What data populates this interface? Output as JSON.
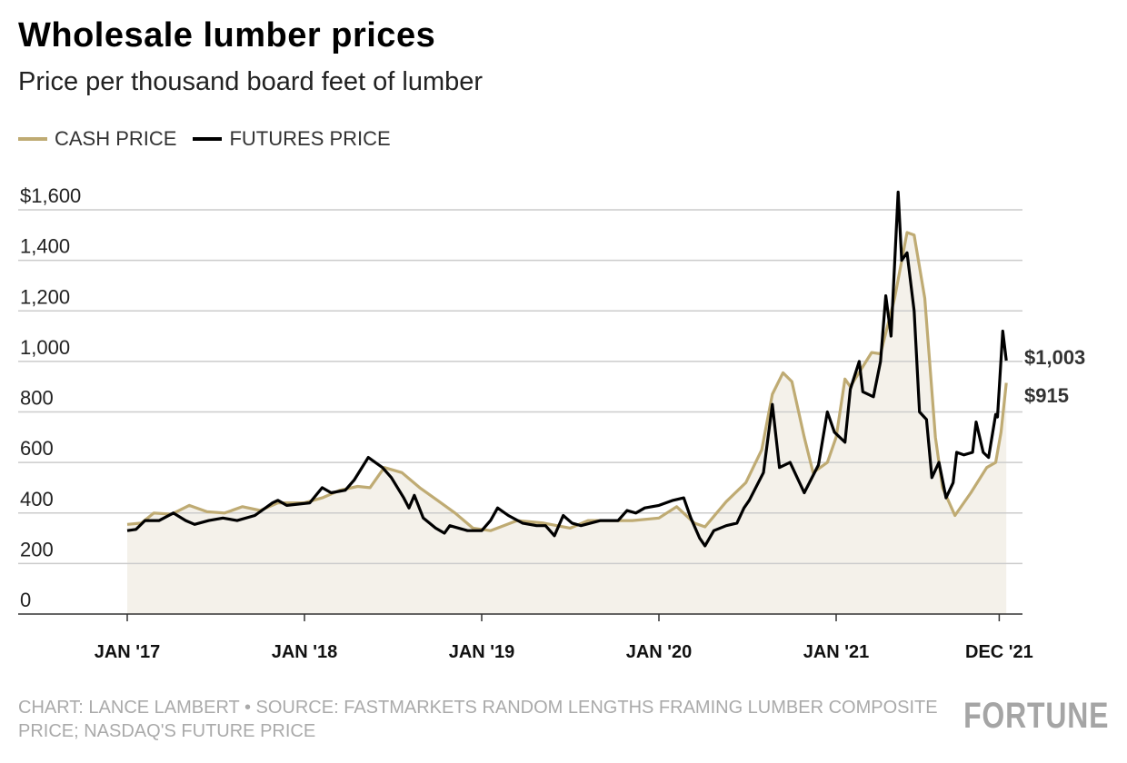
{
  "title": "Wholesale lumber prices",
  "subtitle": "Price per thousand board feet of lumber",
  "source": "CHART: LANCE LAMBERT • SOURCE: FASTMARKETS RANDOM LENGTHS FRAMING LUMBER COMPOSITE PRICE; NASDAQ'S FUTURE PRICE",
  "logo": "FORTUNE",
  "colors": {
    "cash": "#bfab73",
    "futures": "#000000",
    "fill": "#f4f1ea",
    "grid": "#cccccc"
  },
  "chart_data": {
    "type": "line",
    "title": "Wholesale lumber prices",
    "ylim": [
      0,
      1600
    ],
    "yticks": [
      0,
      200,
      400,
      600,
      800,
      1000,
      1200,
      1400,
      1600
    ],
    "ytick_labels": [
      "0",
      "200",
      "400",
      "600",
      "800",
      "1,000",
      "1,200",
      "1,400",
      "$1,600"
    ],
    "xticks": [
      2017.0,
      2018.0,
      2019.0,
      2020.0,
      2021.0,
      2021.92
    ],
    "xtick_labels": [
      "JAN '17",
      "JAN '18",
      "JAN '19",
      "JAN '20",
      "JAN '21",
      "DEC '21"
    ],
    "grid": true,
    "legend": "top-left",
    "series": [
      {
        "name": "CASH PRICE",
        "color": "#bfab73",
        "end_label": "$915",
        "points": [
          [
            2017.0,
            355
          ],
          [
            2017.08,
            360
          ],
          [
            2017.15,
            400
          ],
          [
            2017.25,
            395
          ],
          [
            2017.35,
            430
          ],
          [
            2017.45,
            405
          ],
          [
            2017.55,
            400
          ],
          [
            2017.65,
            425
          ],
          [
            2017.75,
            410
          ],
          [
            2017.85,
            440
          ],
          [
            2018.0,
            440
          ],
          [
            2018.1,
            460
          ],
          [
            2018.2,
            490
          ],
          [
            2018.3,
            505
          ],
          [
            2018.37,
            500
          ],
          [
            2018.45,
            580
          ],
          [
            2018.55,
            560
          ],
          [
            2018.65,
            500
          ],
          [
            2018.75,
            450
          ],
          [
            2018.85,
            400
          ],
          [
            2018.95,
            340
          ],
          [
            2019.05,
            330
          ],
          [
            2019.2,
            370
          ],
          [
            2019.35,
            360
          ],
          [
            2019.5,
            340
          ],
          [
            2019.6,
            370
          ],
          [
            2019.75,
            370
          ],
          [
            2019.85,
            370
          ],
          [
            2020.0,
            380
          ],
          [
            2020.1,
            425
          ],
          [
            2020.2,
            360
          ],
          [
            2020.26,
            345
          ],
          [
            2020.38,
            445
          ],
          [
            2020.49,
            520
          ],
          [
            2020.58,
            650
          ],
          [
            2020.64,
            870
          ],
          [
            2020.7,
            955
          ],
          [
            2020.75,
            920
          ],
          [
            2020.82,
            700
          ],
          [
            2020.87,
            560
          ],
          [
            2020.95,
            600
          ],
          [
            2021.0,
            700
          ],
          [
            2021.05,
            930
          ],
          [
            2021.08,
            900
          ],
          [
            2021.2,
            1035
          ],
          [
            2021.25,
            1030
          ],
          [
            2021.33,
            1250
          ],
          [
            2021.4,
            1510
          ],
          [
            2021.44,
            1500
          ],
          [
            2021.5,
            1250
          ],
          [
            2021.56,
            700
          ],
          [
            2021.6,
            500
          ],
          [
            2021.67,
            390
          ],
          [
            2021.76,
            480
          ],
          [
            2021.85,
            580
          ],
          [
            2021.9,
            600
          ],
          [
            2021.93,
            720
          ],
          [
            2021.96,
            915
          ]
        ]
      },
      {
        "name": "FUTURES PRICE",
        "color": "#000000",
        "end_label": "$1,003",
        "points": [
          [
            2017.0,
            330
          ],
          [
            2017.05,
            335
          ],
          [
            2017.1,
            370
          ],
          [
            2017.18,
            370
          ],
          [
            2017.26,
            400
          ],
          [
            2017.33,
            370
          ],
          [
            2017.38,
            355
          ],
          [
            2017.46,
            370
          ],
          [
            2017.54,
            380
          ],
          [
            2017.62,
            370
          ],
          [
            2017.72,
            390
          ],
          [
            2017.82,
            440
          ],
          [
            2017.85,
            450
          ],
          [
            2017.9,
            430
          ],
          [
            2018.03,
            440
          ],
          [
            2018.1,
            500
          ],
          [
            2018.15,
            480
          ],
          [
            2018.23,
            490
          ],
          [
            2018.28,
            530
          ],
          [
            2018.36,
            620
          ],
          [
            2018.44,
            580
          ],
          [
            2018.49,
            540
          ],
          [
            2018.56,
            460
          ],
          [
            2018.59,
            420
          ],
          [
            2018.62,
            470
          ],
          [
            2018.67,
            380
          ],
          [
            2018.74,
            340
          ],
          [
            2018.79,
            320
          ],
          [
            2018.82,
            350
          ],
          [
            2018.87,
            340
          ],
          [
            2018.92,
            330
          ],
          [
            2019.0,
            330
          ],
          [
            2019.05,
            370
          ],
          [
            2019.09,
            420
          ],
          [
            2019.15,
            390
          ],
          [
            2019.23,
            360
          ],
          [
            2019.31,
            350
          ],
          [
            2019.36,
            350
          ],
          [
            2019.41,
            310
          ],
          [
            2019.46,
            390
          ],
          [
            2019.51,
            360
          ],
          [
            2019.56,
            350
          ],
          [
            2019.67,
            370
          ],
          [
            2019.77,
            370
          ],
          [
            2019.82,
            410
          ],
          [
            2019.87,
            400
          ],
          [
            2019.92,
            420
          ],
          [
            2020.0,
            430
          ],
          [
            2020.08,
            450
          ],
          [
            2020.14,
            460
          ],
          [
            2020.18,
            380
          ],
          [
            2020.23,
            300
          ],
          [
            2020.26,
            270
          ],
          [
            2020.31,
            330
          ],
          [
            2020.38,
            350
          ],
          [
            2020.44,
            360
          ],
          [
            2020.48,
            420
          ],
          [
            2020.51,
            450
          ],
          [
            2020.59,
            560
          ],
          [
            2020.64,
            830
          ],
          [
            2020.68,
            580
          ],
          [
            2020.74,
            600
          ],
          [
            2020.82,
            480
          ],
          [
            2020.9,
            590
          ],
          [
            2020.95,
            800
          ],
          [
            2020.99,
            720
          ],
          [
            2021.05,
            680
          ],
          [
            2021.08,
            890
          ],
          [
            2021.13,
            1000
          ],
          [
            2021.15,
            880
          ],
          [
            2021.21,
            860
          ],
          [
            2021.25,
            1000
          ],
          [
            2021.28,
            1260
          ],
          [
            2021.31,
            1100
          ],
          [
            2021.35,
            1670
          ],
          [
            2021.37,
            1400
          ],
          [
            2021.4,
            1430
          ],
          [
            2021.44,
            1200
          ],
          [
            2021.47,
            800
          ],
          [
            2021.51,
            770
          ],
          [
            2021.54,
            540
          ],
          [
            2021.58,
            600
          ],
          [
            2021.62,
            460
          ],
          [
            2021.66,
            520
          ],
          [
            2021.68,
            640
          ],
          [
            2021.72,
            630
          ],
          [
            2021.77,
            640
          ],
          [
            2021.79,
            760
          ],
          [
            2021.83,
            640
          ],
          [
            2021.86,
            620
          ],
          [
            2021.9,
            790
          ],
          [
            2021.91,
            780
          ],
          [
            2021.94,
            1120
          ],
          [
            2021.96,
            1003
          ]
        ]
      }
    ]
  }
}
